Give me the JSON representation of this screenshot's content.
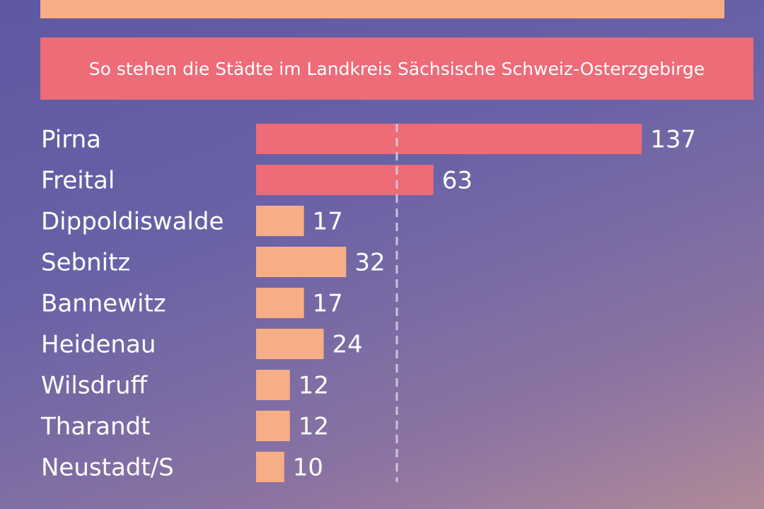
{
  "header": {
    "subtitle": "So stehen die Städte im Landkreis Sächsische Schweiz-Osterzgebirge"
  },
  "chart_data": {
    "type": "bar",
    "orientation": "horizontal",
    "categories": [
      "Pirna",
      "Freital",
      "Dippoldiswalde",
      "Sebnitz",
      "Bannewitz",
      "Heidenau",
      "Wilsdruff",
      "Tharandt",
      "Neustadt/S"
    ],
    "values": [
      137,
      63,
      17,
      32,
      17,
      24,
      12,
      12,
      10
    ],
    "reference_line": 50,
    "highlight_threshold": 50,
    "colors": {
      "highlight": "#ee6b78",
      "normal": "#f7ae86",
      "reference_line": "#d9d3e3",
      "text": "#ffffff"
    }
  }
}
